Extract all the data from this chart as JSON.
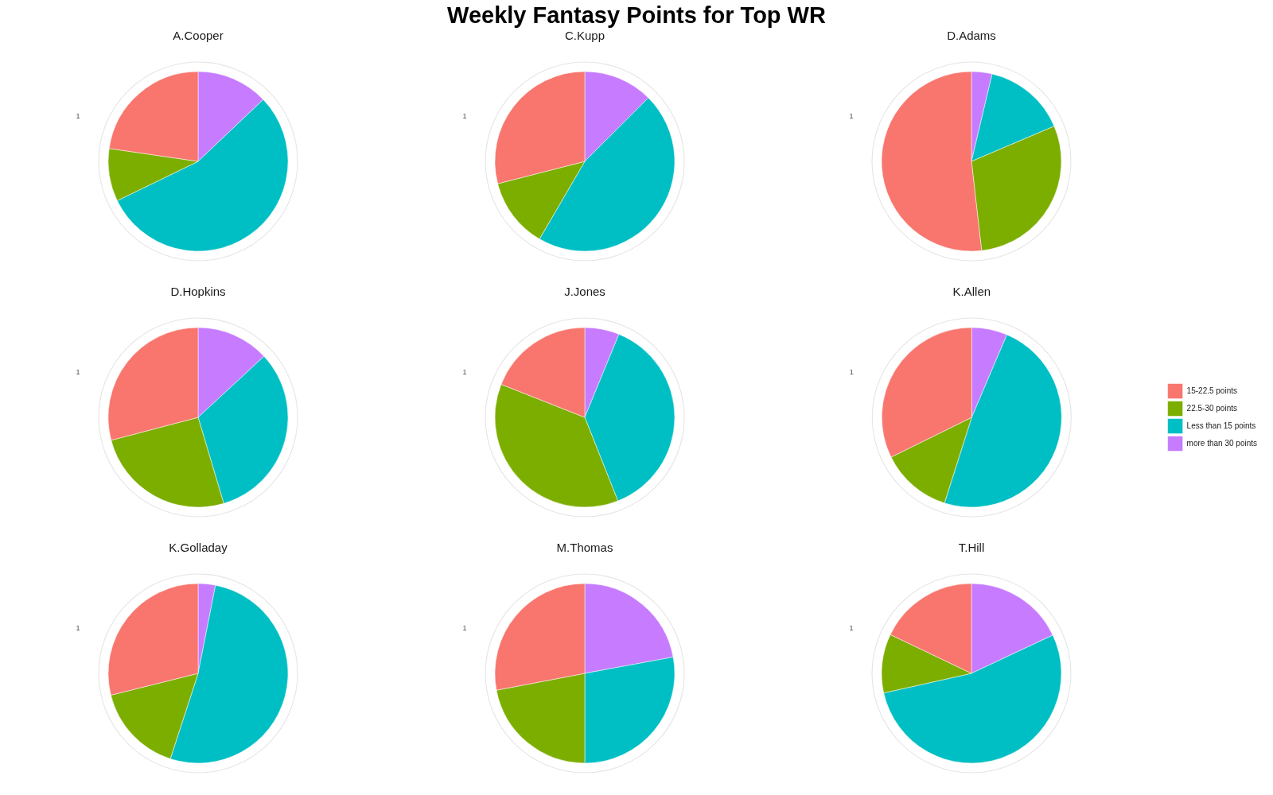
{
  "chart_data": [
    {
      "type": "other",
      "title": "Weekly Fantasy Points for Top WR"
    },
    {
      "type": "pie",
      "title": "A.Cooper",
      "categories": [
        null,
        null,
        null,
        null
      ],
      "values": [
        12.9,
        54.9,
        9.5,
        22.7
      ],
      "colors": [
        "#c77cff",
        "#00bfc4",
        "#7cae00",
        "#f8766d"
      ],
      "annotations": [
        "1"
      ],
      "grid": true
    },
    {
      "type": "pie",
      "title": "C.Kupp",
      "categories": [
        null,
        null,
        null,
        null
      ],
      "values": [
        12.5,
        45.9,
        12.6,
        29.0
      ],
      "colors": [
        "#c77cff",
        "#00bfc4",
        "#7cae00",
        "#f8766d"
      ],
      "annotations": [
        "1"
      ],
      "grid": true
    },
    {
      "type": "pie",
      "title": "D.Adams",
      "categories": [
        null,
        null,
        null,
        null
      ],
      "values": [
        3.7,
        14.9,
        29.6,
        51.8
      ],
      "colors": [
        "#c77cff",
        "#00bfc4",
        "#7cae00",
        "#f8766d"
      ],
      "annotations": [
        "1"
      ],
      "grid": true
    },
    {
      "type": "pie",
      "title": "D.Hopkins",
      "categories": [
        null,
        null,
        null,
        null
      ],
      "values": [
        13.1,
        32.3,
        25.5,
        29.1
      ],
      "colors": [
        "#c77cff",
        "#00bfc4",
        "#7cae00",
        "#f8766d"
      ],
      "annotations": [
        "1"
      ],
      "grid": true
    },
    {
      "type": "pie",
      "title": "J.Jones",
      "categories": [
        null,
        null,
        null,
        null
      ],
      "values": [
        6.2,
        37.8,
        37.0,
        19.0
      ],
      "colors": [
        "#c77cff",
        "#00bfc4",
        "#7cae00",
        "#f8766d"
      ],
      "annotations": [
        "1"
      ],
      "grid": true
    },
    {
      "type": "pie",
      "title": "K.Allen",
      "categories": [
        "more than 30 points",
        "Less than 15 points",
        "22.5-30 points",
        "15-22.5 points"
      ],
      "values": [
        6.4,
        48.5,
        12.8,
        32.3
      ],
      "colors": [
        "#c77cff",
        "#00bfc4",
        "#7cae00",
        "#f8766d"
      ],
      "annotations": [
        "1"
      ],
      "grid": true,
      "legend": "right"
    },
    {
      "type": "pie",
      "title": "K.Golladay",
      "categories": [
        null,
        null,
        null,
        null
      ],
      "values": [
        3.1,
        51.9,
        16.1,
        28.9
      ],
      "colors": [
        "#c77cff",
        "#00bfc4",
        "#7cae00",
        "#f8766d"
      ],
      "annotations": [
        "1"
      ],
      "grid": true
    },
    {
      "type": "pie",
      "title": "M.Thomas",
      "categories": [
        null,
        null,
        null,
        null
      ],
      "values": [
        22.1,
        27.9,
        22.0,
        28.0
      ],
      "colors": [
        "#c77cff",
        "#00bfc4",
        "#7cae00",
        "#f8766d"
      ],
      "annotations": [
        "1"
      ],
      "grid": true
    },
    {
      "type": "pie",
      "title": "T.Hill",
      "categories": [
        null,
        null,
        null,
        null
      ],
      "values": [
        18.0,
        53.5,
        10.6,
        17.9
      ],
      "colors": [
        "#c77cff",
        "#00bfc4",
        "#7cae00",
        "#f8766d"
      ],
      "annotations": [
        "1"
      ],
      "grid": true
    }
  ]
}
